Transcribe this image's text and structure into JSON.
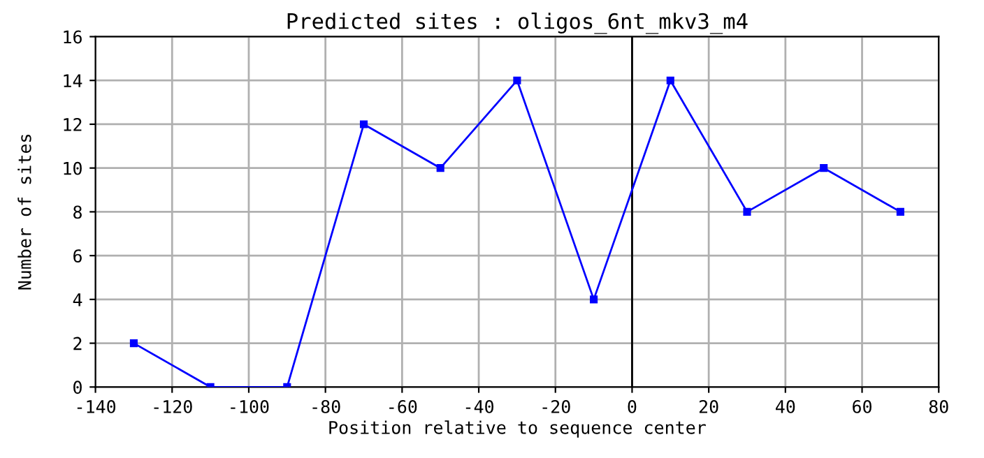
{
  "chart_data": {
    "type": "line",
    "title": "Predicted sites : oligos_6nt_mkv3_m4",
    "xlabel": "Position relative to sequence center",
    "ylabel": "Number of sites",
    "x": [
      -130,
      -110,
      -90,
      -70,
      -50,
      -30,
      -10,
      10,
      30,
      50,
      70
    ],
    "series": [
      {
        "color": "#0000ff",
        "values": [
          2,
          0,
          0,
          12,
          10,
          14,
          4,
          14,
          8,
          10,
          8
        ]
      }
    ],
    "xlim": [
      -140,
      80
    ],
    "xticks": [
      -140,
      -120,
      -100,
      -80,
      -60,
      -40,
      -20,
      0,
      20,
      40,
      60,
      80
    ],
    "ylim": [
      0,
      16
    ],
    "yticks": [
      0,
      2,
      4,
      6,
      8,
      10,
      12,
      14,
      16
    ],
    "ref_lines": [
      {
        "axis": "x",
        "value": 0,
        "color": "#000000"
      }
    ],
    "grid": true,
    "marker": "square",
    "line_style": "solid"
  }
}
